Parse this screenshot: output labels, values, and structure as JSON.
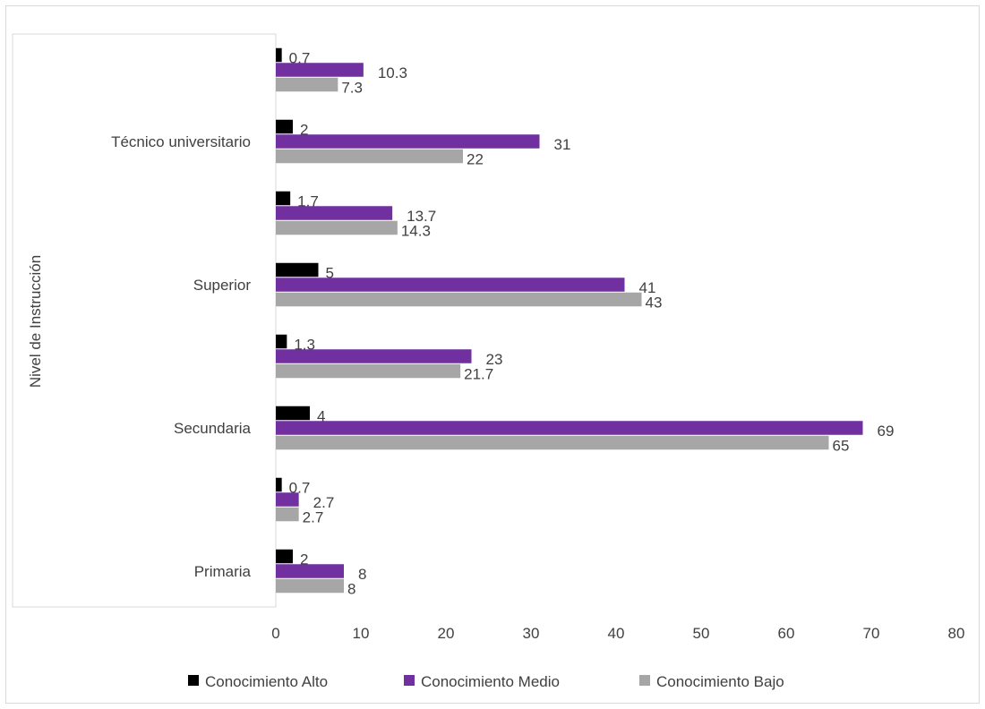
{
  "chart_data": {
    "type": "bar",
    "orientation": "horizontal",
    "ylabel": "Nivel de Instrucción",
    "xlim": [
      0,
      80
    ],
    "x_ticks": [
      0,
      10,
      20,
      30,
      40,
      50,
      60,
      70,
      80
    ],
    "grid": false,
    "legend_position": "bottom",
    "category_labels": [
      "",
      "Técnico universitario",
      "",
      "Superior",
      "",
      "Secundaria",
      "",
      "Primaria"
    ],
    "series": [
      {
        "name": "Conocimiento Alto",
        "color": "#000000",
        "values": [
          0.7,
          2,
          1.7,
          5,
          1.3,
          4,
          0.7,
          2
        ]
      },
      {
        "name": "Conocimiento Medio",
        "color": "#7030a0",
        "values": [
          10.3,
          31,
          13.7,
          41,
          23,
          69,
          2.7,
          8
        ]
      },
      {
        "name": "Conocimiento Bajo",
        "color": "#a6a6a6",
        "values": [
          7.3,
          22,
          14.3,
          43,
          21.7,
          65,
          2.7,
          8
        ]
      }
    ]
  }
}
